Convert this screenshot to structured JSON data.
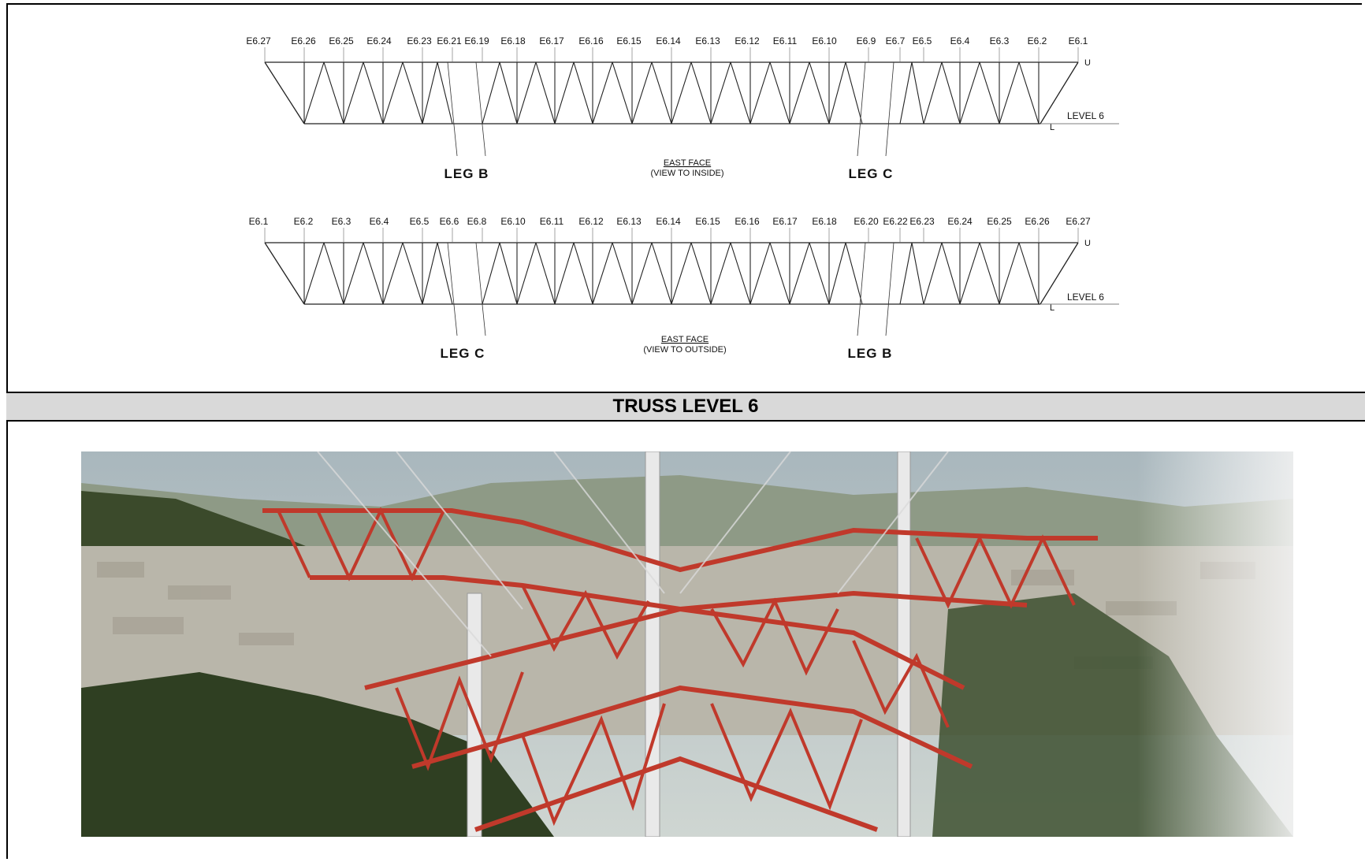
{
  "section_title": "TRUSS LEVEL 6",
  "elevations": [
    {
      "labels_left_to_right": [
        "E6.27",
        "E6.26",
        "E6.25",
        "E6.24",
        "E6.23",
        "E6.21",
        "E6.19",
        "E6.18",
        "E6.17",
        "E6.16",
        "E6.15",
        "E6.14",
        "E6.13",
        "E6.12",
        "E6.11",
        "E6.10",
        "E6.9",
        "E6.7",
        "E6.5",
        "E6.4",
        "E6.3",
        "E6.2",
        "E6.1"
      ],
      "face_title": "EAST FACE",
      "face_subtitle": "(VIEW TO INSIDE)",
      "left_leg": "LEG B",
      "right_leg": "LEG C",
      "level_label": "LEVEL 6",
      "upper_chord": "U",
      "lower_chord": "L"
    },
    {
      "labels_left_to_right": [
        "E6.1",
        "E6.2",
        "E6.3",
        "E6.4",
        "E6.5",
        "E6.6",
        "E6.8",
        "E6.10",
        "E6.11",
        "E6.12",
        "E6.13",
        "E6.14",
        "E6.15",
        "E6.16",
        "E6.17",
        "E6.18",
        "E6.20",
        "E6.22",
        "E6.23",
        "E6.24",
        "E6.25",
        "E6.26",
        "E6.27"
      ],
      "face_title": "EAST FACE",
      "face_subtitle": "(VIEW TO OUTSIDE)",
      "left_leg": "LEG C",
      "right_leg": "LEG B",
      "level_label": "LEVEL 6",
      "upper_chord": "U",
      "lower_chord": "L"
    }
  ],
  "photo": {
    "subject": "red-white-lattice-tower-truss",
    "colors": {
      "truss_red": "#c0392b",
      "sky": "#b8c6cc",
      "forest": "#3d4a2a",
      "city": "#b7b4a8"
    }
  }
}
